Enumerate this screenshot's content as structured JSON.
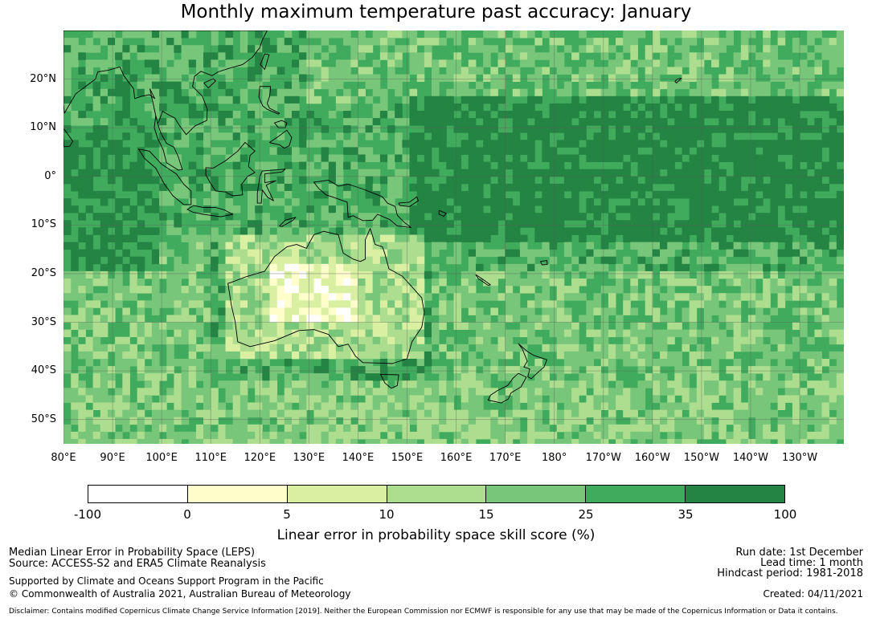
{
  "title": "Monthly maximum temperature past accuracy: January",
  "map": {
    "lon_range": [
      80,
      239
    ],
    "lat_range": [
      -55,
      30
    ],
    "lat_labels": [
      {
        "lat": 20,
        "text": "20°N"
      },
      {
        "lat": 10,
        "text": "10°N"
      },
      {
        "lat": 0,
        "text": "0°"
      },
      {
        "lat": -10,
        "text": "10°S"
      },
      {
        "lat": -20,
        "text": "20°S"
      },
      {
        "lat": -30,
        "text": "30°S"
      },
      {
        "lat": -40,
        "text": "40°S"
      },
      {
        "lat": -50,
        "text": "50°S"
      }
    ],
    "lon_labels": [
      {
        "lon": 80,
        "text": "80°E"
      },
      {
        "lon": 90,
        "text": "90°E"
      },
      {
        "lon": 100,
        "text": "100°E"
      },
      {
        "lon": 110,
        "text": "110°E"
      },
      {
        "lon": 120,
        "text": "120°E"
      },
      {
        "lon": 130,
        "text": "130°E"
      },
      {
        "lon": 140,
        "text": "140°E"
      },
      {
        "lon": 150,
        "text": "150°E"
      },
      {
        "lon": 160,
        "text": "160°E"
      },
      {
        "lon": 170,
        "text": "170°E"
      },
      {
        "lon": 180,
        "text": "180°"
      },
      {
        "lon": 190,
        "text": "170°W"
      },
      {
        "lon": 200,
        "text": "160°W"
      },
      {
        "lon": 210,
        "text": "150°W"
      },
      {
        "lon": 220,
        "text": "140°W"
      },
      {
        "lon": 230,
        "text": "130°W"
      }
    ]
  },
  "colorbar": {
    "colors": [
      "#ffffff",
      "#ffffcc",
      "#d9f0a3",
      "#addd8e",
      "#78c679",
      "#41ab5d",
      "#238443"
    ],
    "ticks": [
      "-100",
      "0",
      "5",
      "10",
      "15",
      "25",
      "35",
      "100"
    ],
    "label": "Linear error in probability space skill score (%)"
  },
  "footer": {
    "method": "Median Linear Error in Probability Space (LEPS)",
    "source": "Source: ACCESS-S2 and ERA5 Climate Reanalysis",
    "support": "Supported by Climate and Oceans Support Program in the Pacific",
    "copyright": "© Commonwealth of Australia 2021, Australian Bureau of Meteorology",
    "disclaimer": "Disclaimer: Contains modified Copernicus Climate Change Service Information [2019]. Neither the European Commission nor ECMWF is responsible for any use that may be made of the Copernicus Information or Data it contains.",
    "run_date": "Run date: 1st December",
    "lead_time": "Lead time: 1 month",
    "hindcast": "Hindcast period: 1981-2018",
    "created": "Created: 04/11/2021"
  }
}
